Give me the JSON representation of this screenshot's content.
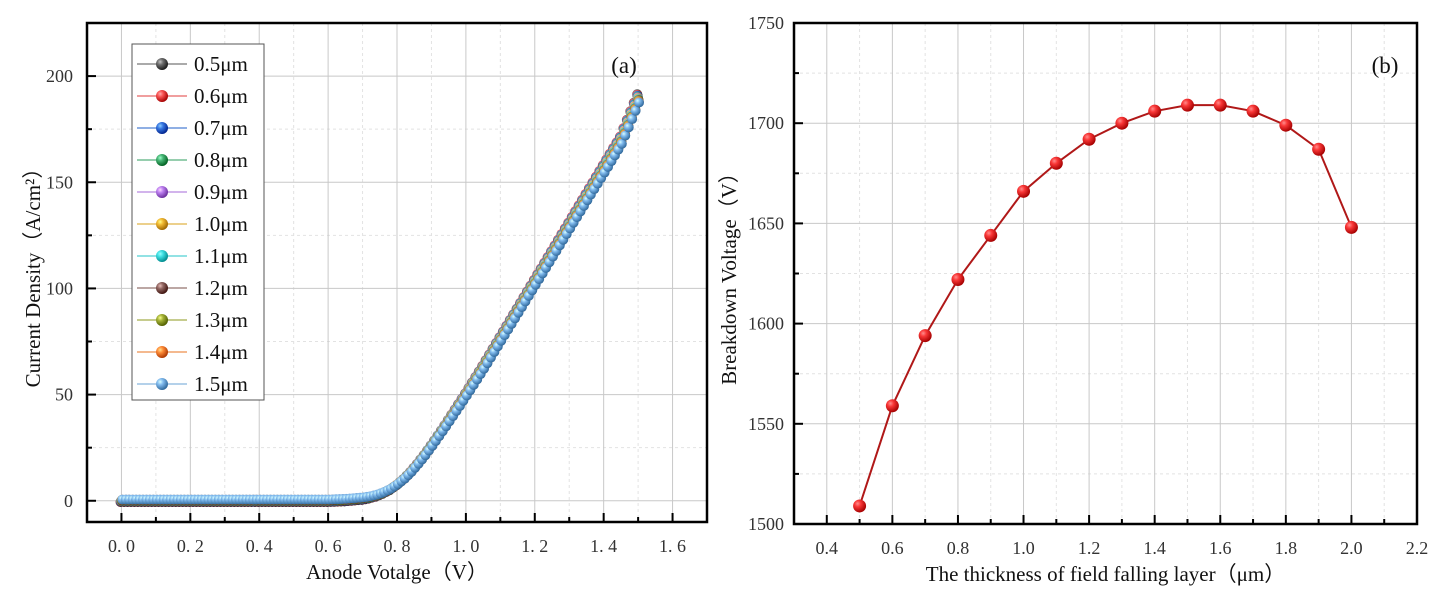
{
  "chart_data": [
    {
      "id": "a",
      "type": "scatter",
      "panel_label": "(a)",
      "title": "",
      "xlabel": "Anode Votalge（V）",
      "ylabel": "Current Density（A/cm²）",
      "xlim": [
        -0.1,
        1.7
      ],
      "ylim": [
        -10,
        225
      ],
      "xticks": [
        0.0,
        0.2,
        0.4,
        0.6,
        0.8,
        1.0,
        1.2,
        1.4,
        1.6
      ],
      "xtick_labels": [
        "0. 0",
        "0. 2",
        "0. 4",
        "0. 6",
        "0. 8",
        "1. 0",
        "1. 2",
        "1. 4",
        "1. 6"
      ],
      "yticks": [
        0,
        50,
        100,
        150,
        200
      ],
      "ytick_labels": [
        "0",
        "50",
        "100",
        "150",
        "200"
      ],
      "grid": true,
      "legend_position": "top-left",
      "x": [
        0.0,
        0.1,
        0.2,
        0.3,
        0.4,
        0.5,
        0.6,
        0.65,
        0.7,
        0.72,
        0.74,
        0.76,
        0.78,
        0.8,
        0.82,
        0.84,
        0.86,
        0.88,
        0.9,
        0.92,
        0.94,
        0.96,
        0.98,
        1.0,
        1.05,
        1.1,
        1.15,
        1.2,
        1.25,
        1.3,
        1.35,
        1.4,
        1.45,
        1.5
      ],
      "series": [
        {
          "name": "0.5μm",
          "color": "#555555",
          "values": [
            0,
            0,
            0,
            0,
            0,
            0,
            0,
            0.3,
            1,
            1.6,
            2.5,
            3.8,
            5.5,
            7.8,
            10.6,
            14.0,
            17.8,
            22.0,
            26.5,
            31.2,
            36.0,
            41.0,
            46.0,
            51.0,
            64.0,
            77.5,
            91.0,
            104.5,
            118.0,
            131.5,
            145.0,
            158.5,
            172.0,
            192.0
          ]
        },
        {
          "name": "0.6μm",
          "color": "#e03c3c",
          "values": [
            0,
            0,
            0,
            0,
            0,
            0,
            0,
            0.3,
            1,
            1.6,
            2.5,
            3.8,
            5.5,
            7.8,
            10.6,
            14.0,
            17.8,
            22.0,
            26.5,
            31.2,
            36.0,
            41.0,
            46.0,
            51.0,
            64.0,
            77.5,
            91.0,
            104.5,
            118.0,
            131.5,
            145.0,
            158.5,
            172.0,
            191.5
          ]
        },
        {
          "name": "0.7μm",
          "color": "#1f5fc9",
          "values": [
            0,
            0,
            0,
            0,
            0,
            0,
            0,
            0.3,
            1,
            1.6,
            2.5,
            3.8,
            5.4,
            7.7,
            10.5,
            13.9,
            17.7,
            21.9,
            26.4,
            31.1,
            35.9,
            40.8,
            45.8,
            50.8,
            63.7,
            77.2,
            90.7,
            104.1,
            117.6,
            131.0,
            144.5,
            158.0,
            171.5,
            191.0
          ]
        },
        {
          "name": "0.8μm",
          "color": "#2e9c5c",
          "values": [
            0,
            0,
            0,
            0,
            0,
            0,
            0,
            0.3,
            1,
            1.6,
            2.5,
            3.7,
            5.4,
            7.7,
            10.5,
            13.8,
            17.6,
            21.8,
            26.3,
            31.0,
            35.8,
            40.7,
            45.6,
            50.6,
            63.5,
            76.9,
            90.4,
            103.8,
            117.2,
            130.6,
            144.0,
            157.5,
            171.0,
            190.5
          ]
        },
        {
          "name": "0.9μm",
          "color": "#a569d8",
          "values": [
            0,
            0,
            0,
            0,
            0,
            0,
            0,
            0.3,
            1,
            1.6,
            2.4,
            3.7,
            5.4,
            7.6,
            10.4,
            13.7,
            17.5,
            21.7,
            26.2,
            30.9,
            35.7,
            40.5,
            45.4,
            50.4,
            63.2,
            76.6,
            90.0,
            103.4,
            116.8,
            130.2,
            143.6,
            157.0,
            170.5,
            190.0
          ]
        },
        {
          "name": "1.0μm",
          "color": "#d9a11a",
          "values": [
            0,
            0,
            0,
            0,
            0,
            0,
            0,
            0.3,
            1,
            1.6,
            2.4,
            3.7,
            5.3,
            7.6,
            10.3,
            13.6,
            17.4,
            21.6,
            26.0,
            30.7,
            35.5,
            40.3,
            45.2,
            50.2,
            63.0,
            76.3,
            89.7,
            103.0,
            116.4,
            129.8,
            143.2,
            156.5,
            170.0,
            189.5
          ]
        },
        {
          "name": "1.1μm",
          "color": "#26c6c9",
          "values": [
            0,
            0,
            0,
            0,
            0,
            0,
            0,
            0.3,
            1,
            1.5,
            2.4,
            3.6,
            5.3,
            7.5,
            10.3,
            13.5,
            17.3,
            21.5,
            25.9,
            30.6,
            35.3,
            40.1,
            45.0,
            49.9,
            62.7,
            76.0,
            89.3,
            102.6,
            116.0,
            129.4,
            142.7,
            156.0,
            169.5,
            189.0
          ]
        },
        {
          "name": "1.2μm",
          "color": "#7a4f4a",
          "values": [
            0,
            0,
            0,
            0,
            0,
            0,
            0,
            0.3,
            1,
            1.5,
            2.4,
            3.6,
            5.2,
            7.5,
            10.2,
            13.4,
            17.2,
            21.3,
            25.7,
            30.4,
            35.1,
            39.9,
            44.8,
            49.7,
            62.4,
            75.7,
            89.0,
            102.2,
            115.6,
            129.0,
            142.2,
            155.5,
            169.0,
            188.5
          ]
        },
        {
          "name": "1.3μm",
          "color": "#8c9a1e",
          "values": [
            0,
            0,
            0,
            0,
            0,
            0,
            0,
            0.3,
            1,
            1.5,
            2.3,
            3.6,
            5.2,
            7.4,
            10.1,
            13.3,
            17.1,
            21.2,
            25.6,
            30.2,
            34.9,
            39.7,
            44.6,
            49.5,
            62.2,
            75.4,
            88.6,
            101.9,
            115.2,
            128.5,
            141.8,
            155.0,
            168.5,
            188.0
          ]
        },
        {
          "name": "1.4μm",
          "color": "#e8731f",
          "values": [
            0,
            0,
            0,
            0,
            0,
            0,
            0,
            0.3,
            1,
            1.5,
            2.3,
            3.5,
            5.1,
            7.4,
            10.0,
            13.2,
            17.0,
            21.0,
            25.4,
            30.0,
            34.7,
            39.5,
            44.4,
            49.3,
            61.9,
            75.1,
            88.3,
            101.5,
            114.8,
            128.1,
            141.4,
            154.5,
            168.0,
            187.5
          ]
        },
        {
          "name": "1.5μm",
          "color": "#6aa3d6",
          "values": [
            0,
            0,
            0,
            0,
            0,
            0,
            0,
            0.3,
            1,
            1.5,
            2.3,
            3.5,
            5.1,
            7.3,
            9.9,
            13.1,
            16.9,
            20.9,
            25.3,
            29.9,
            34.5,
            39.3,
            44.1,
            49.0,
            61.6,
            74.8,
            88.0,
            101.2,
            114.4,
            127.7,
            141.0,
            154.0,
            167.5,
            187.0
          ]
        }
      ]
    },
    {
      "id": "b",
      "type": "line",
      "panel_label": "(b)",
      "title": "",
      "xlabel": "The thickness of field falling layer（μm）",
      "ylabel": "Breakdown Voltage（V）",
      "xlim": [
        0.3,
        2.2
      ],
      "ylim": [
        1500,
        1750
      ],
      "xticks": [
        0.4,
        0.6,
        0.8,
        1.0,
        1.2,
        1.4,
        1.6,
        1.8,
        2.0,
        2.2
      ],
      "xtick_labels": [
        "0.4",
        "0.6",
        "0.8",
        "1.0",
        "1.2",
        "1.4",
        "1.6",
        "1.8",
        "2.0",
        "2.2"
      ],
      "yticks": [
        1500,
        1550,
        1600,
        1650,
        1700,
        1750
      ],
      "ytick_labels": [
        "1500",
        "1550",
        "1600",
        "1650",
        "1700",
        "1750"
      ],
      "grid": true,
      "color": "#e01e1e",
      "line_color": "#b01818",
      "x": [
        0.5,
        0.6,
        0.7,
        0.8,
        0.9,
        1.0,
        1.1,
        1.2,
        1.3,
        1.4,
        1.5,
        1.6,
        1.7,
        1.8,
        1.9,
        2.0
      ],
      "values": [
        1509,
        1559,
        1594,
        1622,
        1644,
        1666,
        1680,
        1692,
        1700,
        1706,
        1709,
        1709,
        1706,
        1699,
        1687,
        1648
      ]
    }
  ]
}
